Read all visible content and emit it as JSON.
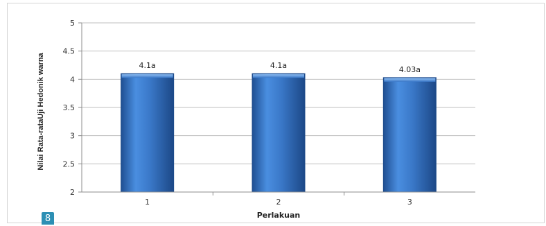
{
  "page_badge": "8",
  "chart_data": {
    "type": "bar",
    "categories": [
      "1",
      "2",
      "3"
    ],
    "values": [
      4.1,
      4.1,
      4.03
    ],
    "data_labels": [
      "4.1a",
      "4.1a",
      "4.03a"
    ],
    "xlabel": "Perlakuan",
    "ylabel": "Nilai Rata-rataUji Hedonik warna",
    "ylim": [
      2,
      5
    ],
    "yticks": [
      2,
      2.5,
      3,
      3.5,
      4,
      4.5,
      5
    ],
    "grid": true,
    "legend": "none",
    "bar_color": "#3a78c8"
  }
}
